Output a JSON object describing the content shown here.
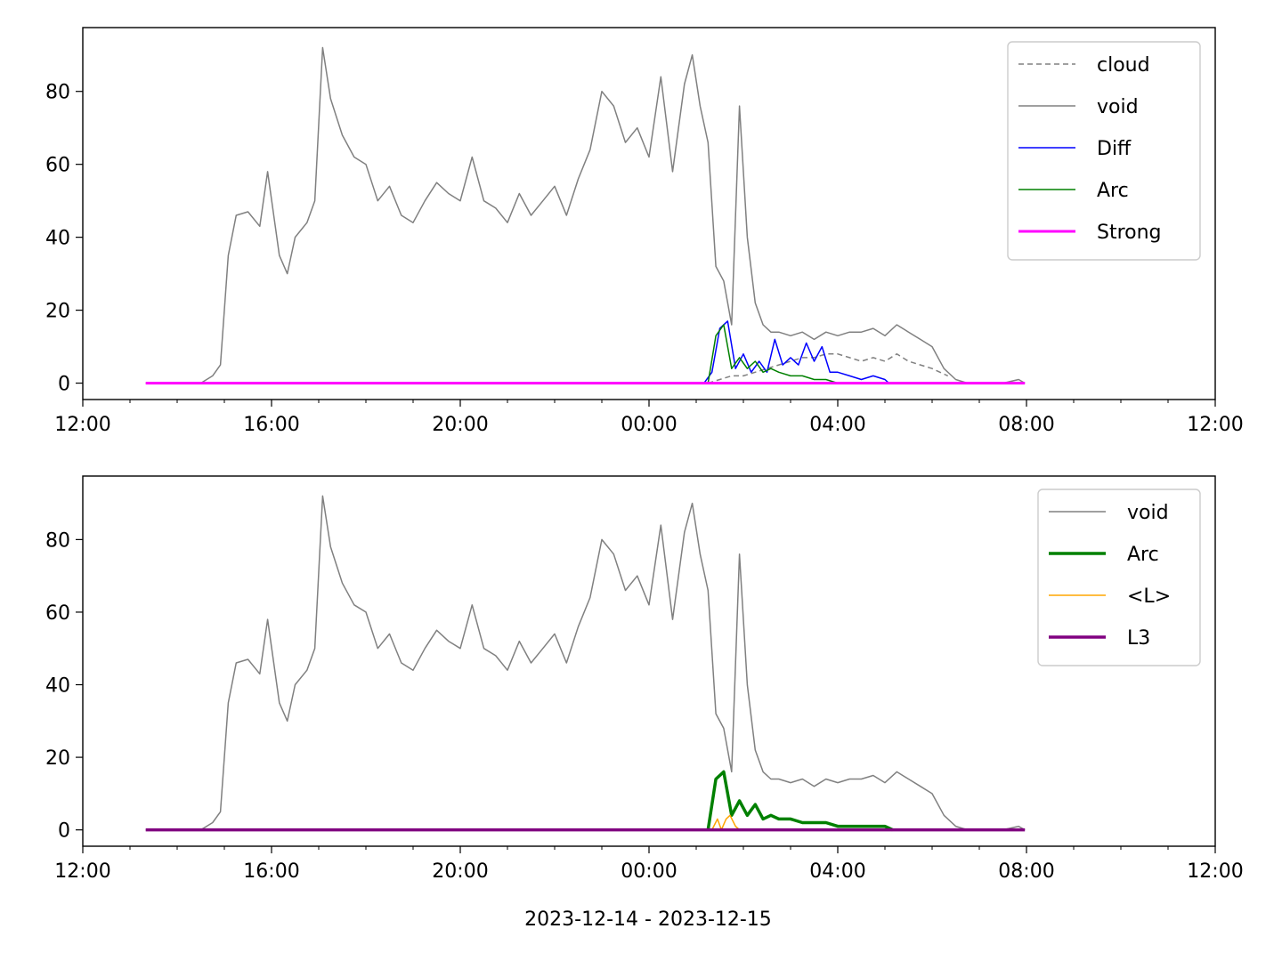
{
  "figure": {
    "xlabel": "2023-12-14 - 2023-12-15"
  },
  "chart_data": [
    {
      "type": "line",
      "x_unit": "datetime",
      "xlim": [
        "2023-12-14 12:00",
        "2023-12-15 12:00"
      ],
      "ylim": [
        -4.5,
        97.5
      ],
      "xticks": [
        "2023-12-14 12:00",
        "2023-12-14 16:00",
        "2023-12-14 20:00",
        "2023-12-15 00:00",
        "2023-12-15 04:00",
        "2023-12-15 08:00",
        "2023-12-15 12:00"
      ],
      "xtick_labels": [
        "12:00",
        "16:00",
        "20:00",
        "00:00",
        "04:00",
        "08:00",
        "12:00"
      ],
      "yticks": [
        0,
        20,
        40,
        60,
        80
      ],
      "ytick_labels": [
        "0",
        "20",
        "40",
        "60",
        "80"
      ],
      "legend_position": "top-right",
      "series": [
        {
          "name": "cloud",
          "color": "#808080",
          "style": "dashed",
          "x": [
            "2023-12-15 01:15",
            "2023-12-15 01:30",
            "2023-12-15 01:45",
            "2023-12-15 02:00",
            "2023-12-15 02:15",
            "2023-12-15 02:30",
            "2023-12-15 02:45",
            "2023-12-15 03:00",
            "2023-12-15 03:15",
            "2023-12-15 03:30",
            "2023-12-15 03:45",
            "2023-12-15 04:00",
            "2023-12-15 04:15",
            "2023-12-15 04:30",
            "2023-12-15 04:45",
            "2023-12-15 05:00",
            "2023-12-15 05:15",
            "2023-12-15 05:30",
            "2023-12-15 05:45",
            "2023-12-15 06:00",
            "2023-12-15 06:10",
            "2023-12-15 06:20"
          ],
          "y": [
            0,
            1,
            2,
            2,
            3,
            4,
            5,
            6,
            7,
            7,
            8,
            8,
            7,
            6,
            7,
            6,
            8,
            6,
            5,
            4,
            3,
            2
          ]
        },
        {
          "name": "void",
          "color": "#808080",
          "style": "solid",
          "x": [
            "2023-12-14 13:20",
            "2023-12-14 14:00",
            "2023-12-14 14:30",
            "2023-12-14 14:45",
            "2023-12-14 14:55",
            "2023-12-14 15:05",
            "2023-12-14 15:15",
            "2023-12-14 15:30",
            "2023-12-14 15:45",
            "2023-12-14 15:55",
            "2023-12-14 16:10",
            "2023-12-14 16:20",
            "2023-12-14 16:30",
            "2023-12-14 16:45",
            "2023-12-14 16:55",
            "2023-12-14 17:05",
            "2023-12-14 17:15",
            "2023-12-14 17:30",
            "2023-12-14 17:45",
            "2023-12-14 18:00",
            "2023-12-14 18:15",
            "2023-12-14 18:30",
            "2023-12-14 18:45",
            "2023-12-14 19:00",
            "2023-12-14 19:15",
            "2023-12-14 19:30",
            "2023-12-14 19:45",
            "2023-12-14 20:00",
            "2023-12-14 20:15",
            "2023-12-14 20:30",
            "2023-12-14 20:45",
            "2023-12-14 21:00",
            "2023-12-14 21:15",
            "2023-12-14 21:30",
            "2023-12-14 21:45",
            "2023-12-14 22:00",
            "2023-12-14 22:15",
            "2023-12-14 22:30",
            "2023-12-14 22:45",
            "2023-12-14 23:00",
            "2023-12-14 23:15",
            "2023-12-14 23:30",
            "2023-12-14 23:45",
            "2023-12-15 00:00",
            "2023-12-15 00:15",
            "2023-12-15 00:30",
            "2023-12-15 00:45",
            "2023-12-15 00:55",
            "2023-12-15 01:05",
            "2023-12-15 01:15",
            "2023-12-15 01:25",
            "2023-12-15 01:35",
            "2023-12-15 01:45",
            "2023-12-15 01:55",
            "2023-12-15 02:05",
            "2023-12-15 02:15",
            "2023-12-15 02:25",
            "2023-12-15 02:35",
            "2023-12-15 02:45",
            "2023-12-15 03:00",
            "2023-12-15 03:15",
            "2023-12-15 03:30",
            "2023-12-15 03:45",
            "2023-12-15 04:00",
            "2023-12-15 04:15",
            "2023-12-15 04:30",
            "2023-12-15 04:45",
            "2023-12-15 05:00",
            "2023-12-15 05:15",
            "2023-12-15 05:30",
            "2023-12-15 05:45",
            "2023-12-15 06:00",
            "2023-12-15 06:15",
            "2023-12-15 06:30",
            "2023-12-15 06:45",
            "2023-12-15 07:00",
            "2023-12-15 07:30",
            "2023-12-15 07:50",
            "2023-12-15 07:58"
          ],
          "y": [
            0,
            0,
            0,
            2,
            5,
            35,
            46,
            47,
            43,
            58,
            35,
            30,
            40,
            44,
            50,
            92,
            78,
            68,
            62,
            60,
            50,
            54,
            46,
            44,
            50,
            55,
            52,
            50,
            62,
            50,
            48,
            44,
            52,
            46,
            50,
            54,
            46,
            56,
            64,
            80,
            76,
            66,
            70,
            62,
            84,
            58,
            82,
            90,
            76,
            66,
            32,
            28,
            16,
            76,
            40,
            22,
            16,
            14,
            14,
            13,
            14,
            12,
            14,
            13,
            14,
            14,
            15,
            13,
            16,
            14,
            12,
            10,
            4,
            1,
            0,
            0,
            0,
            1,
            0
          ]
        },
        {
          "name": "Diff",
          "color": "#0000ff",
          "style": "solid",
          "x": [
            "2023-12-15 01:00",
            "2023-12-15 01:10",
            "2023-12-15 01:20",
            "2023-12-15 01:30",
            "2023-12-15 01:40",
            "2023-12-15 01:50",
            "2023-12-15 02:00",
            "2023-12-15 02:10",
            "2023-12-15 02:20",
            "2023-12-15 02:30",
            "2023-12-15 02:40",
            "2023-12-15 02:50",
            "2023-12-15 03:00",
            "2023-12-15 03:10",
            "2023-12-15 03:20",
            "2023-12-15 03:30",
            "2023-12-15 03:40",
            "2023-12-15 03:50",
            "2023-12-15 04:00",
            "2023-12-15 04:15",
            "2023-12-15 04:30",
            "2023-12-15 04:45",
            "2023-12-15 05:00",
            "2023-12-15 05:05"
          ],
          "y": [
            0,
            0,
            3,
            15,
            17,
            4,
            8,
            3,
            6,
            3,
            12,
            5,
            7,
            5,
            11,
            6,
            10,
            3,
            3,
            2,
            1,
            2,
            1,
            0
          ]
        },
        {
          "name": "Arc",
          "color": "#008000",
          "style": "solid",
          "x": [
            "2023-12-15 01:15",
            "2023-12-15 01:25",
            "2023-12-15 01:35",
            "2023-12-15 01:45",
            "2023-12-15 01:55",
            "2023-12-15 02:05",
            "2023-12-15 02:15",
            "2023-12-15 02:25",
            "2023-12-15 02:35",
            "2023-12-15 02:45",
            "2023-12-15 03:00",
            "2023-12-15 03:15",
            "2023-12-15 03:30",
            "2023-12-15 03:45",
            "2023-12-15 04:00",
            "2023-12-15 04:15"
          ],
          "y": [
            0,
            13,
            16,
            4,
            7,
            4,
            6,
            3,
            4,
            3,
            2,
            2,
            1,
            1,
            0,
            0
          ]
        },
        {
          "name": "Strong",
          "color": "#ff00ff",
          "style": "solid",
          "x": [
            "2023-12-14 13:20",
            "2023-12-15 07:58"
          ],
          "y": [
            0,
            0
          ]
        }
      ]
    },
    {
      "type": "line",
      "x_unit": "datetime",
      "xlim": [
        "2023-12-14 12:00",
        "2023-12-15 12:00"
      ],
      "ylim": [
        -4.5,
        97.5
      ],
      "xticks": [
        "2023-12-14 12:00",
        "2023-12-14 16:00",
        "2023-12-14 20:00",
        "2023-12-15 00:00",
        "2023-12-15 04:00",
        "2023-12-15 08:00",
        "2023-12-15 12:00"
      ],
      "xtick_labels": [
        "12:00",
        "16:00",
        "20:00",
        "00:00",
        "04:00",
        "08:00",
        "12:00"
      ],
      "yticks": [
        0,
        20,
        40,
        60,
        80
      ],
      "ytick_labels": [
        "0",
        "20",
        "40",
        "60",
        "80"
      ],
      "legend_position": "top-right",
      "series": [
        {
          "name": "void",
          "color": "#808080",
          "style": "solid",
          "x": [
            "2023-12-14 13:20",
            "2023-12-14 14:00",
            "2023-12-14 14:30",
            "2023-12-14 14:45",
            "2023-12-14 14:55",
            "2023-12-14 15:05",
            "2023-12-14 15:15",
            "2023-12-14 15:30",
            "2023-12-14 15:45",
            "2023-12-14 15:55",
            "2023-12-14 16:10",
            "2023-12-14 16:20",
            "2023-12-14 16:30",
            "2023-12-14 16:45",
            "2023-12-14 16:55",
            "2023-12-14 17:05",
            "2023-12-14 17:15",
            "2023-12-14 17:30",
            "2023-12-14 17:45",
            "2023-12-14 18:00",
            "2023-12-14 18:15",
            "2023-12-14 18:30",
            "2023-12-14 18:45",
            "2023-12-14 19:00",
            "2023-12-14 19:15",
            "2023-12-14 19:30",
            "2023-12-14 19:45",
            "2023-12-14 20:00",
            "2023-12-14 20:15",
            "2023-12-14 20:30",
            "2023-12-14 20:45",
            "2023-12-14 21:00",
            "2023-12-14 21:15",
            "2023-12-14 21:30",
            "2023-12-14 21:45",
            "2023-12-14 22:00",
            "2023-12-14 22:15",
            "2023-12-14 22:30",
            "2023-12-14 22:45",
            "2023-12-14 23:00",
            "2023-12-14 23:15",
            "2023-12-14 23:30",
            "2023-12-14 23:45",
            "2023-12-15 00:00",
            "2023-12-15 00:15",
            "2023-12-15 00:30",
            "2023-12-15 00:45",
            "2023-12-15 00:55",
            "2023-12-15 01:05",
            "2023-12-15 01:15",
            "2023-12-15 01:25",
            "2023-12-15 01:35",
            "2023-12-15 01:45",
            "2023-12-15 01:55",
            "2023-12-15 02:05",
            "2023-12-15 02:15",
            "2023-12-15 02:25",
            "2023-12-15 02:35",
            "2023-12-15 02:45",
            "2023-12-15 03:00",
            "2023-12-15 03:15",
            "2023-12-15 03:30",
            "2023-12-15 03:45",
            "2023-12-15 04:00",
            "2023-12-15 04:15",
            "2023-12-15 04:30",
            "2023-12-15 04:45",
            "2023-12-15 05:00",
            "2023-12-15 05:15",
            "2023-12-15 05:30",
            "2023-12-15 05:45",
            "2023-12-15 06:00",
            "2023-12-15 06:15",
            "2023-12-15 06:30",
            "2023-12-15 06:45",
            "2023-12-15 07:00",
            "2023-12-15 07:30",
            "2023-12-15 07:50",
            "2023-12-15 07:58"
          ],
          "y": [
            0,
            0,
            0,
            2,
            5,
            35,
            46,
            47,
            43,
            58,
            35,
            30,
            40,
            44,
            50,
            92,
            78,
            68,
            62,
            60,
            50,
            54,
            46,
            44,
            50,
            55,
            52,
            50,
            62,
            50,
            48,
            44,
            52,
            46,
            50,
            54,
            46,
            56,
            64,
            80,
            76,
            66,
            70,
            62,
            84,
            58,
            82,
            90,
            76,
            66,
            32,
            28,
            16,
            76,
            40,
            22,
            16,
            14,
            14,
            13,
            14,
            12,
            14,
            13,
            14,
            14,
            15,
            13,
            16,
            14,
            12,
            10,
            4,
            1,
            0,
            0,
            0,
            1,
            0
          ]
        },
        {
          "name": "Arc",
          "color": "#008000",
          "style": "solid",
          "x": [
            "2023-12-15 01:15",
            "2023-12-15 01:25",
            "2023-12-15 01:35",
            "2023-12-15 01:45",
            "2023-12-15 01:55",
            "2023-12-15 02:05",
            "2023-12-15 02:15",
            "2023-12-15 02:25",
            "2023-12-15 02:35",
            "2023-12-15 02:45",
            "2023-12-15 03:00",
            "2023-12-15 03:15",
            "2023-12-15 03:30",
            "2023-12-15 03:45",
            "2023-12-15 04:00",
            "2023-12-15 04:15",
            "2023-12-15 04:30",
            "2023-12-15 04:45",
            "2023-12-15 05:00",
            "2023-12-15 05:10"
          ],
          "y": [
            0,
            14,
            16,
            4,
            8,
            4,
            7,
            3,
            4,
            3,
            3,
            2,
            2,
            2,
            1,
            1,
            1,
            1,
            1,
            0
          ]
        },
        {
          "name": "<L>",
          "color": "#ffa500",
          "style": "solid",
          "x": [
            "2023-12-15 01:20",
            "2023-12-15 01:27",
            "2023-12-15 01:32",
            "2023-12-15 01:38",
            "2023-12-15 01:43",
            "2023-12-15 01:50",
            "2023-12-15 01:55"
          ],
          "y": [
            0,
            3,
            0,
            3,
            4,
            1,
            0
          ]
        },
        {
          "name": "L3",
          "color": "#800080",
          "style": "solid",
          "x": [
            "2023-12-14 13:20",
            "2023-12-15 07:58"
          ],
          "y": [
            0,
            0
          ]
        }
      ]
    }
  ]
}
